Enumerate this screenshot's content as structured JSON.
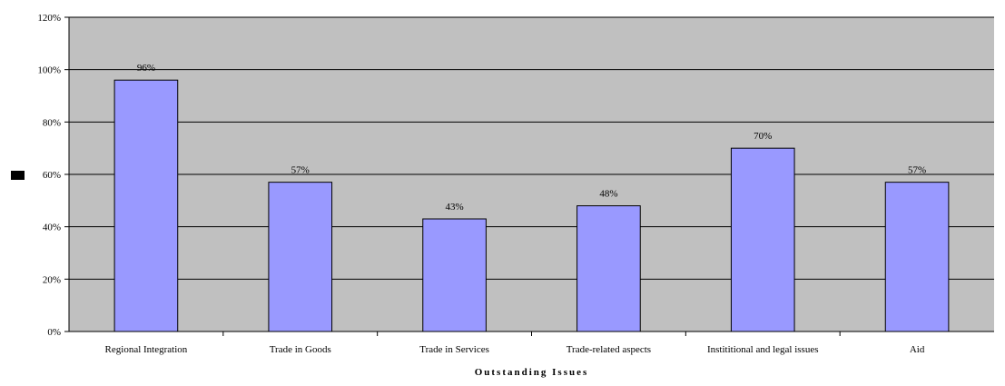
{
  "chart_data": {
    "type": "bar",
    "categories": [
      "Regional Integration",
      "Trade in Goods",
      "Trade in Services",
      "Trade-related aspects",
      "Instititional and legal issues",
      "Aid"
    ],
    "values": [
      96,
      57,
      43,
      48,
      70,
      57
    ],
    "data_labels": [
      "96%",
      "57%",
      "43%",
      "48%",
      "70%",
      "57%"
    ],
    "xlabel": "Outstanding Issues",
    "ylabel": "",
    "ylim": [
      0,
      120
    ],
    "y_ticks": [
      "0%",
      "20%",
      "40%",
      "60%",
      "80%",
      "100%",
      "120%"
    ],
    "grid": true,
    "legend": "left",
    "colors": {
      "plot_background": "#c0c0c0",
      "bar_fill": "#9999ff",
      "bar_stroke": "#000000",
      "gridline": "#000000",
      "legend_swatch": "#000000"
    }
  }
}
